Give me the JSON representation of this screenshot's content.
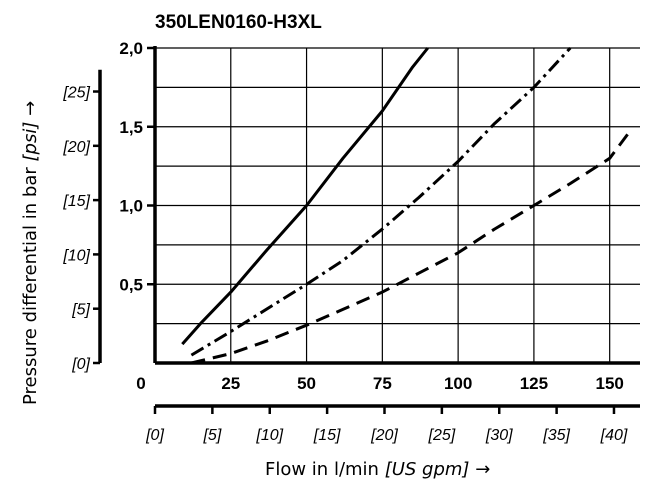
{
  "chart_data": {
    "type": "line",
    "title": "350LEN0160-H3XL",
    "xlabel": "Flow in l/min",
    "xlabel_secondary_unit": "[US gpm]",
    "xlabel_arrow": "→",
    "ylabel": "Pressure differential in bar",
    "ylabel_secondary_unit": "[psi]",
    "ylabel_arrow": "→",
    "xlim": [
      0,
      160
    ],
    "ylim": [
      0,
      2.0
    ],
    "grid": true,
    "x_ticks": [
      {
        "value": 0,
        "label": "0"
      },
      {
        "value": 25,
        "label": "25"
      },
      {
        "value": 50,
        "label": "50"
      },
      {
        "value": 75,
        "label": "75"
      },
      {
        "value": 100,
        "label": "100"
      },
      {
        "value": 125,
        "label": "125"
      },
      {
        "value": 150,
        "label": "150"
      }
    ],
    "x_secondary_ticks": [
      {
        "value": 0,
        "label": "[0]"
      },
      {
        "value": 5,
        "label": "[5]"
      },
      {
        "value": 10,
        "label": "[10]"
      },
      {
        "value": 15,
        "label": "[15]"
      },
      {
        "value": 20,
        "label": "[20]"
      },
      {
        "value": 25,
        "label": "[25]"
      },
      {
        "value": 30,
        "label": "[30]"
      },
      {
        "value": 35,
        "label": "[35]"
      },
      {
        "value": 40,
        "label": "[40]"
      }
    ],
    "y_ticks": [
      {
        "value": 0.5,
        "label": "0,5"
      },
      {
        "value": 1.0,
        "label": "1,0"
      },
      {
        "value": 1.5,
        "label": "1,5"
      },
      {
        "value": 2.0,
        "label": "2,0"
      }
    ],
    "y_secondary_ticks": [
      {
        "value": 0,
        "label": "[0]"
      },
      {
        "value": 5,
        "label": "[5]"
      },
      {
        "value": 10,
        "label": "[10]"
      },
      {
        "value": 15,
        "label": "[15]"
      },
      {
        "value": 20,
        "label": "[20]"
      },
      {
        "value": 25,
        "label": "[25]"
      }
    ],
    "series": [
      {
        "style": "solid",
        "x": [
          9,
          15,
          25,
          37,
          50,
          62,
          75,
          85,
          90
        ],
        "y": [
          0.12,
          0.25,
          0.45,
          0.72,
          1.0,
          1.3,
          1.6,
          1.88,
          2.0
        ]
      },
      {
        "style": "dash-dot",
        "x": [
          12,
          25,
          40,
          50,
          62,
          75,
          87,
          100,
          112,
          125,
          137
        ],
        "y": [
          0.05,
          0.2,
          0.38,
          0.5,
          0.65,
          0.85,
          1.05,
          1.28,
          1.52,
          1.75,
          2.0
        ]
      },
      {
        "style": "dashed",
        "x": [
          12,
          25,
          37,
          50,
          62,
          75,
          87,
          100,
          112,
          125,
          137,
          150,
          157
        ],
        "y": [
          0.0,
          0.06,
          0.14,
          0.24,
          0.34,
          0.45,
          0.57,
          0.7,
          0.85,
          1.0,
          1.14,
          1.3,
          1.48
        ]
      }
    ]
  }
}
